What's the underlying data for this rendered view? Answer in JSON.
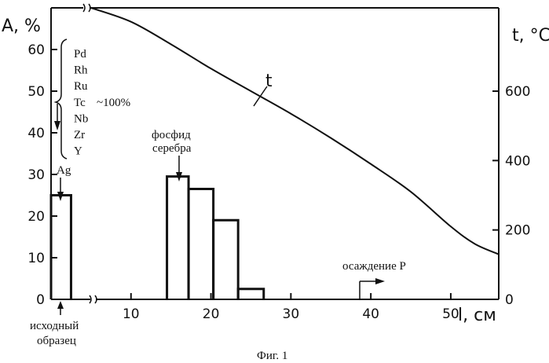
{
  "chart_data": {
    "type": "bar",
    "title": "",
    "xlabel": "l, см",
    "ylabel_left": "A, %",
    "ylabel_right": "t, °C",
    "x_range": [
      0,
      56
    ],
    "x_ticks": [
      "10",
      "20",
      "30",
      "40",
      "50"
    ],
    "x_tick_values": [
      10,
      20,
      30,
      40,
      50
    ],
    "ylim_left": [
      0,
      70
    ],
    "y_ticks_left": [
      "0",
      "10",
      "20",
      "30",
      "40",
      "50",
      "60"
    ],
    "y_tick_values_left": [
      0,
      10,
      20,
      30,
      40,
      50,
      60
    ],
    "ylim_right": [
      0,
      840
    ],
    "y_ticks_right": [
      "0",
      "200",
      "400",
      "600"
    ],
    "y_tick_values_right": [
      0,
      200,
      400,
      600
    ],
    "bars": [
      {
        "x0": 0,
        "x1": 2.5,
        "value": 25
      },
      {
        "x0": 14.5,
        "x1": 17.2,
        "value": 29.5
      },
      {
        "x0": 17.2,
        "x1": 20.3,
        "value": 26.5
      },
      {
        "x0": 20.3,
        "x1": 23.4,
        "value": 19
      },
      {
        "x0": 23.4,
        "x1": 26.6,
        "value": 2.5
      }
    ],
    "temperature_curve": {
      "name": "t",
      "x": [
        5,
        10,
        15,
        20,
        25,
        30,
        35,
        40,
        45,
        50,
        53,
        56
      ],
      "y": [
        840,
        800,
        735,
        665,
        600,
        535,
        465,
        390,
        310,
        210,
        160,
        130
      ]
    },
    "grid": false
  },
  "annotations": {
    "elements": [
      "Pd",
      "Rh",
      "Ru",
      "Tc",
      "Nb",
      "Zr",
      "Y"
    ],
    "approx_value": "~100%",
    "ag_label": "Ag",
    "phosphide_line1": "фосфид",
    "phosphide_line2": "серебра",
    "curve_label": "t",
    "deposition": "осаждение P",
    "sample_line1": "исходный",
    "sample_line2": "образец"
  },
  "caption": "Фиг. 1"
}
